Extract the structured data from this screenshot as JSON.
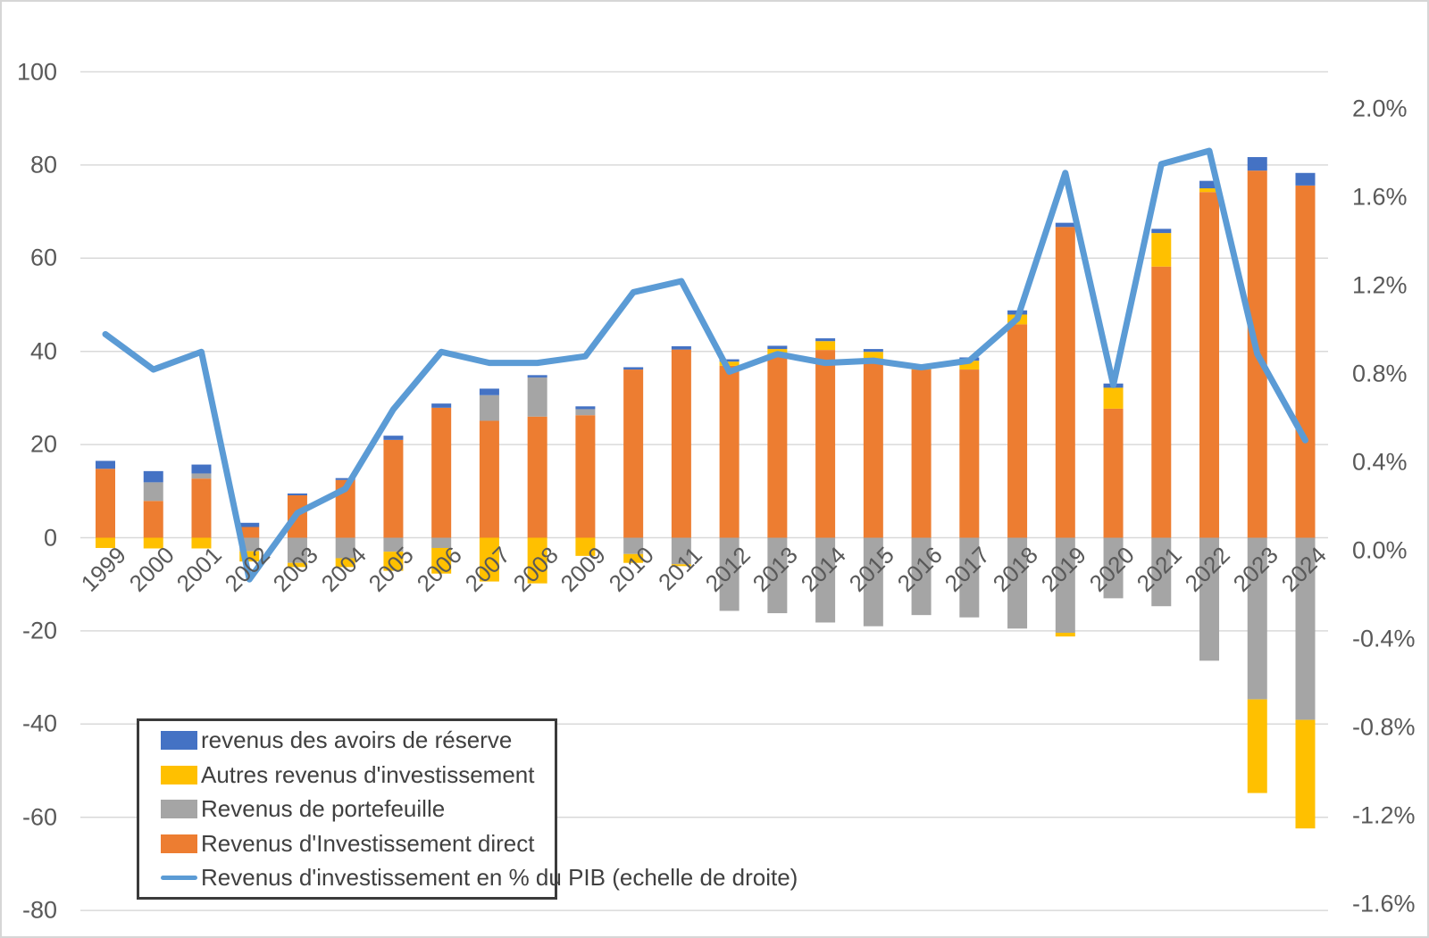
{
  "chart_data": {
    "type": "combo_stacked_bar_line",
    "title": "",
    "categories": [
      "1999",
      "2000",
      "2001",
      "2002",
      "2003",
      "2004",
      "2005",
      "2006",
      "2007",
      "2008",
      "2009",
      "2010",
      "2011",
      "2012",
      "2013",
      "2014",
      "2015",
      "2016",
      "2017",
      "2018",
      "2019",
      "2020",
      "2021",
      "2022",
      "2023",
      "2024"
    ],
    "left_axis": {
      "min": -80,
      "max": 100,
      "tick_values": [
        100,
        80,
        60,
        40,
        20,
        0,
        -20,
        -40,
        -60,
        -80
      ],
      "tick_labels": [
        "100",
        "80",
        "60",
        "40",
        "20",
        "0",
        "-20",
        "-40",
        "-60",
        "-80"
      ]
    },
    "right_axis": {
      "min": -1.6,
      "max": 2.0,
      "tick_values": [
        2.0,
        1.6,
        1.2,
        0.8,
        0.4,
        0.0,
        -0.4,
        -0.8,
        -1.2,
        -1.6
      ],
      "tick_labels": [
        "2.0%",
        "1.6%",
        "1.2%",
        "0.8%",
        "0.4%",
        "0.0%",
        "-0.4%",
        "-0.8%",
        "-1.2%",
        "-1.6%"
      ]
    },
    "grid": true,
    "series": [
      {
        "key": "direct",
        "name": "Revenus d'Investissement direct",
        "type": "bar",
        "color": "#ED7D31",
        "axis": "left",
        "values": [
          14.8,
          7.9,
          12.7,
          2.3,
          9.1,
          12.4,
          21.0,
          27.9,
          25.1,
          26.0,
          26.3,
          36.1,
          40.4,
          36.9,
          38.7,
          40.3,
          38.2,
          36.1,
          36.1,
          45.8,
          66.7,
          27.7,
          58.2,
          74.2,
          78.8,
          75.6
        ]
      },
      {
        "key": "portefeuille",
        "name": "Revenus de portefeuille",
        "type": "bar",
        "color": "#A5A5A5",
        "axis": "left",
        "values": [
          0,
          4.0,
          1.1,
          -2.9,
          -5.4,
          -4.4,
          -3.0,
          -2.2,
          5.5,
          8.4,
          1.3,
          -3.5,
          -5.7,
          -15.7,
          -16.2,
          -18.2,
          -19.0,
          -16.6,
          -17.1,
          -19.5,
          -20.4,
          -13.0,
          -14.7,
          -26.4,
          -34.7,
          -39.1
        ]
      },
      {
        "key": "autres",
        "name": "Autres revenus d'investissement",
        "type": "bar",
        "color": "#FFC000",
        "axis": "left",
        "values": [
          -2.2,
          -2.3,
          -2.3,
          -2.2,
          -0.9,
          -1.9,
          -4.1,
          -5.5,
          -9.4,
          -9.8,
          -3.9,
          -1.9,
          -0.4,
          0.9,
          1.8,
          1.9,
          1.7,
          0.5,
          1.9,
          2.1,
          -0.8,
          4.5,
          7.2,
          0.8,
          -20.1,
          -23.3
        ]
      },
      {
        "key": "reserve",
        "name": "revenus des avoirs de réserve",
        "type": "bar",
        "color": "#4472C4",
        "axis": "left",
        "values": [
          1.7,
          2.4,
          1.9,
          0.9,
          0.4,
          0.4,
          0.9,
          0.9,
          1.4,
          0.5,
          0.6,
          0.5,
          0.7,
          0.5,
          0.7,
          0.6,
          0.6,
          0.6,
          0.7,
          0.9,
          0.9,
          0.9,
          0.9,
          1.6,
          2.9,
          2.7
        ]
      },
      {
        "key": "pib",
        "name": "Revenus d'investissement en % du PIB (echelle de droite)",
        "type": "line",
        "color": "#5B9BD5",
        "axis": "right",
        "values": [
          0.98,
          0.82,
          0.9,
          -0.13,
          0.17,
          0.28,
          0.64,
          0.9,
          0.85,
          0.85,
          0.88,
          1.17,
          1.22,
          0.81,
          0.89,
          0.85,
          0.86,
          0.83,
          0.86,
          1.05,
          1.71,
          0.75,
          1.75,
          1.81,
          0.89,
          0.5
        ]
      }
    ],
    "legend": [
      {
        "type": "bar",
        "color": "#4472C4",
        "label": "revenus des avoirs de réserve"
      },
      {
        "type": "bar",
        "color": "#FFC000",
        "label": "Autres revenus d'investissement"
      },
      {
        "type": "bar",
        "color": "#A5A5A5",
        "label": "Revenus de portefeuille"
      },
      {
        "type": "bar",
        "color": "#ED7D31",
        "label": "Revenus d'Investissement direct"
      },
      {
        "type": "line",
        "color": "#5B9BD5",
        "label": "Revenus d'investissement en % du PIB (echelle de droite)"
      }
    ],
    "colors": {
      "gridline": "#D9D9D9",
      "axis_text": "#595959",
      "legend_text": "#404040",
      "legend_border": "#3B3B3B"
    }
  }
}
